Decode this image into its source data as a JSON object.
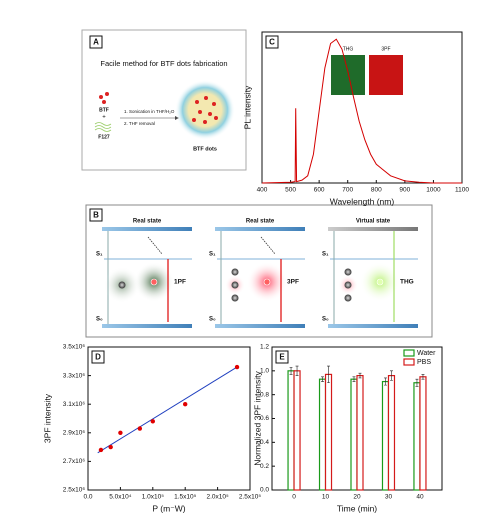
{
  "chart_data": [
    {
      "type": "line",
      "panel": "C",
      "xlabel": "Wavelength (nm)",
      "ylabel": "PL intensity",
      "color": "#d40000",
      "inset": [
        "THG",
        "3PF"
      ],
      "x": [
        400,
        500,
        516,
        518,
        521,
        540,
        560,
        580,
        600,
        620,
        640,
        660,
        680,
        700,
        720,
        740,
        760,
        780,
        800,
        850,
        900,
        950,
        1000,
        1100
      ],
      "values": [
        0,
        0.005,
        0.01,
        0.52,
        0.01,
        0.02,
        0.05,
        0.2,
        0.5,
        0.8,
        0.97,
        1.0,
        0.93,
        0.78,
        0.6,
        0.43,
        0.3,
        0.2,
        0.13,
        0.05,
        0.015,
        0.005,
        0,
        0
      ],
      "xlim": [
        400,
        1100
      ],
      "xticks": [
        400,
        500,
        600,
        700,
        800,
        900,
        1000,
        1100
      ],
      "ylim": [
        0,
        1.05
      ]
    },
    {
      "type": "scatter",
      "panel": "D",
      "xlabel": "P (m⁻W)",
      "ylabel": "3PF intensity",
      "color": "#e00000",
      "fit_color": "#1f3fbf",
      "x": [
        20000,
        35000,
        50000,
        80000,
        100000,
        150000,
        230000
      ],
      "values": [
        2780000,
        2800000,
        2900000,
        2930000,
        2980000,
        3100000,
        3360000
      ],
      "fit": {
        "x": [
          15000,
          230000
        ],
        "values": [
          2760000,
          3360000
        ]
      },
      "xlim": [
        0,
        250000
      ],
      "xticks": [
        {
          "value": 0,
          "label": "0.0"
        },
        {
          "value": 50000,
          "label": "5.0x10⁴"
        },
        {
          "value": 100000,
          "label": "1.0x10⁵"
        },
        {
          "value": 150000,
          "label": "1.5x10⁵"
        },
        {
          "value": 200000,
          "label": "2.0x10⁵"
        },
        {
          "value": 250000,
          "label": "2.5x10⁵"
        }
      ],
      "ylim": [
        2500000,
        3500000
      ],
      "yticks": [
        {
          "value": 2500000,
          "label": "2.5x10⁶"
        },
        {
          "value": 2700000,
          "label": "2.7x10⁶"
        },
        {
          "value": 2900000,
          "label": "2.9x10⁶"
        },
        {
          "value": 3100000,
          "label": "3.1x10⁶"
        },
        {
          "value": 3300000,
          "label": "3.3x10⁶"
        },
        {
          "value": 3500000,
          "label": "3.5x10⁶"
        }
      ]
    },
    {
      "type": "bar",
      "panel": "E",
      "xlabel": "Time (min)",
      "ylabel": "Normalized 3PF intensity",
      "legend": "top-right",
      "categories": [
        "0",
        "10",
        "20",
        "30",
        "40"
      ],
      "series": [
        {
          "name": "Water",
          "color": "#1a9a1a",
          "values": [
            1.0,
            0.93,
            0.93,
            0.91,
            0.9
          ],
          "errors": [
            0.03,
            0.02,
            0.02,
            0.03,
            0.03
          ]
        },
        {
          "name": "PBS",
          "color": "#d41a1a",
          "values": [
            1.0,
            0.97,
            0.96,
            0.96,
            0.95
          ],
          "errors": [
            0.04,
            0.07,
            0.02,
            0.04,
            0.02
          ]
        }
      ],
      "ylim": [
        0,
        1.2
      ],
      "yticks": [
        {
          "value": 0,
          "label": "0.0"
        },
        {
          "value": 0.2,
          "label": "0.2"
        },
        {
          "value": 0.4,
          "label": "0.4"
        },
        {
          "value": 0.6,
          "label": "0.6"
        },
        {
          "value": 0.8,
          "label": "0.8"
        },
        {
          "value": 1.0,
          "label": "1.0"
        },
        {
          "value": 1.2,
          "label": "1.2"
        }
      ]
    }
  ],
  "diagram_a": {
    "panel": "A",
    "title": "Facile method for BTF dots fabrication",
    "btf": "BTF",
    "plus": "+",
    "f127": "F127",
    "steps": [
      "1. Sonication in THF/H₂O",
      "2. THF removal"
    ],
    "product": "BTF dots"
  },
  "diagram_b": {
    "panel": "B",
    "columns": [
      {
        "state": "Real state",
        "s1": "S₁",
        "s0": "S₀",
        "process": "1PF"
      },
      {
        "state": "Real state",
        "s1": "S₁",
        "s0": "S₀",
        "process": "3PF"
      },
      {
        "state": "Virtual state",
        "s1": "S₁",
        "s0": "S₀",
        "process": "THG"
      }
    ]
  }
}
